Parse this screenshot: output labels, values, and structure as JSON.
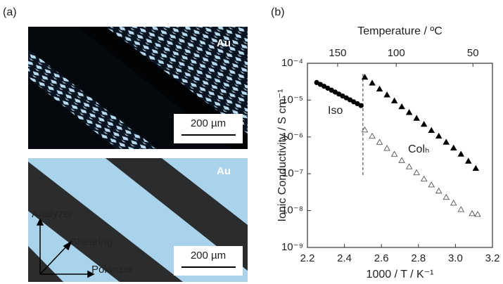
{
  "panel_labels": [
    "(a)",
    "(b)"
  ],
  "images": [
    {
      "label": "Au",
      "scale_bar": "200 µm"
    },
    {
      "label": "Au",
      "scale_bar": "200 µm",
      "axes": [
        "Analyzer",
        "Shearing",
        "Polarizer"
      ]
    }
  ],
  "chart_data": {
    "type": "scatter",
    "xlabel": "1000 / T / K⁻¹",
    "ylabel": "Ionic Conductivity / S cm⁻¹",
    "x2label": "Temperature / ºC",
    "xlim": [
      2.2,
      3.2
    ],
    "xticks": [
      2.2,
      2.4,
      2.6,
      2.8,
      {
        "value": 3,
        "label": "3.0"
      },
      3.2
    ],
    "x2ticks": [
      150,
      100,
      50
    ],
    "ylim": [
      1e-09,
      0.0001
    ],
    "ylog": true,
    "yticks": [
      {
        "value": 1e-09,
        "label": "10⁻⁹"
      },
      {
        "value": 1e-08,
        "label": "10⁻⁸"
      },
      {
        "value": 1e-07,
        "label": "10⁻⁷"
      },
      {
        "value": 1e-06,
        "label": "10⁻⁶"
      },
      {
        "value": 1e-05,
        "label": "10⁻⁵"
      },
      {
        "value": 0.0001,
        "label": "10⁻⁴"
      }
    ],
    "divider_x": 2.5,
    "annotations": [
      "Iso",
      "Colₕ"
    ],
    "series": [
      {
        "marker": "circle",
        "color": "#000000",
        "x": [
          2.25,
          2.27,
          2.29,
          2.31,
          2.33,
          2.35,
          2.37,
          2.39,
          2.41,
          2.43,
          2.45,
          2.47,
          2.49
        ],
        "values": [
          3e-05,
          2.67e-05,
          2.37e-05,
          2.1e-05,
          1.86e-05,
          1.65e-05,
          1.46e-05,
          1.29e-05,
          1.15e-05,
          1.02e-05,
          9e-06,
          8e-06,
          7.1e-06
        ]
      },
      {
        "marker": "triangle",
        "color": "#000000",
        "x": [
          2.51,
          2.55,
          2.59,
          2.63,
          2.67,
          2.71,
          2.75,
          2.79,
          2.83,
          2.87,
          2.91,
          2.95,
          2.99,
          3.03,
          3.07,
          3.11
        ],
        "values": [
          4.2e-05,
          2.9e-05,
          2e-05,
          1.38e-05,
          9.5e-06,
          6.6e-06,
          4.6e-06,
          3.2e-06,
          2.2e-06,
          1.5e-06,
          1.05e-06,
          7.2e-07,
          5e-07,
          3.4e-07,
          2.2e-07,
          1.4e-07
        ]
      },
      {
        "marker": "triangle-open",
        "color": "#555555",
        "x": [
          2.51,
          2.55,
          2.59,
          2.63,
          2.67,
          2.71,
          2.75,
          2.79,
          2.83,
          2.87,
          2.91,
          2.95,
          2.99,
          3.03,
          3.09,
          3.12
        ],
        "values": [
          1.55e-06,
          1.05e-06,
          7.2e-07,
          4.9e-07,
          3.4e-07,
          2.3e-07,
          1.55e-07,
          1.07e-07,
          7.2e-08,
          5e-08,
          3.4e-08,
          2.3e-08,
          1.6e-08,
          1.07e-08,
          8.3e-09,
          7.9e-09
        ]
      }
    ]
  }
}
